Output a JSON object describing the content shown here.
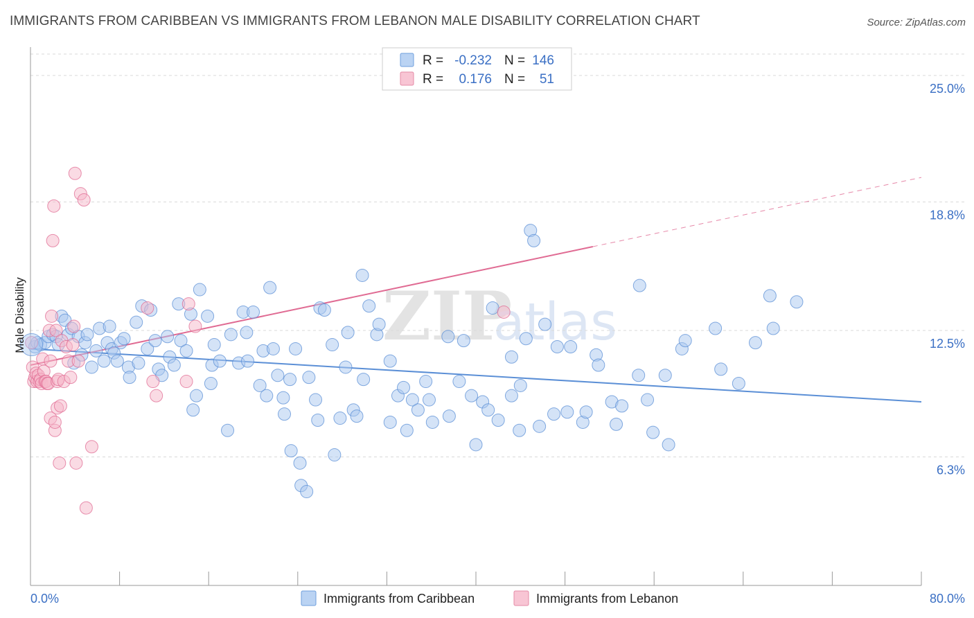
{
  "title": "IMMIGRANTS FROM CARIBBEAN VS IMMIGRANTS FROM LEBANON MALE DISABILITY CORRELATION CHART",
  "source": "Source: ZipAtlas.com",
  "watermark": {
    "zip": "ZIP",
    "atlas": "atlas"
  },
  "legend": {
    "r_label": "R =",
    "n_label": "N =",
    "rows": [
      {
        "name": "Immigrants from Caribbean",
        "r": "-0.232",
        "n": "146",
        "fill": "#a9c8f0",
        "stroke": "#6f9fdc"
      },
      {
        "name": "Immigrants from Lebanon",
        "r": "0.176",
        "n": "51",
        "fill": "#f6b7c9",
        "stroke": "#e58aa6"
      }
    ]
  },
  "chart_data": {
    "type": "scatter",
    "title": "IMMIGRANTS FROM CARIBBEAN VS IMMIGRANTS FROM LEBANON MALE DISABILITY CORRELATION CHART",
    "xlabel": "",
    "ylabel": "Male Disability",
    "xlim": [
      0,
      80
    ],
    "ylim": [
      0,
      27.0
    ],
    "y_ticks": [
      {
        "value": 6.3,
        "label": "6.3%"
      },
      {
        "value": 12.5,
        "label": "12.5%"
      },
      {
        "value": 18.8,
        "label": "18.8%"
      },
      {
        "value": 25.0,
        "label": "25.0%"
      }
    ],
    "x_tick_labels": [
      {
        "value": 0,
        "label": "0.0%"
      },
      {
        "value": 80,
        "label": "80.0%"
      }
    ],
    "x_minor_ticks": [
      0,
      8,
      16,
      24,
      32,
      40,
      48,
      56,
      64,
      72,
      80
    ],
    "grid": true,
    "series": [
      {
        "name": "Immigrants from Caribbean",
        "color": "#5b8fd6",
        "fill": "#a9c8f0",
        "trend": {
          "x0": 0,
          "y0": 11.6,
          "x1": 80,
          "y1": 9.0,
          "dashed_from": null
        },
        "points": [
          [
            0.4,
            11.7
          ],
          [
            0.6,
            11.9
          ],
          [
            0.9,
            11.8
          ],
          [
            1.3,
            11.9
          ],
          [
            1.6,
            12.2
          ],
          [
            2.0,
            12.3
          ],
          [
            2.3,
            12.2
          ],
          [
            2.8,
            13.2
          ],
          [
            2.5,
            11.8
          ],
          [
            3.1,
            13.0
          ],
          [
            3.4,
            12.3
          ],
          [
            3.7,
            12.6
          ],
          [
            3.9,
            10.9
          ],
          [
            4.3,
            12.2
          ],
          [
            4.6,
            11.3
          ],
          [
            4.9,
            11.9
          ],
          [
            5.1,
            12.3
          ],
          [
            5.5,
            10.7
          ],
          [
            5.9,
            11.5
          ],
          [
            6.2,
            12.6
          ],
          [
            6.6,
            11.0
          ],
          [
            6.9,
            11.9
          ],
          [
            7.1,
            12.7
          ],
          [
            7.3,
            11.6
          ],
          [
            7.5,
            11.4
          ],
          [
            7.8,
            11.0
          ],
          [
            8.1,
            11.9
          ],
          [
            8.4,
            12.1
          ],
          [
            8.8,
            10.7
          ],
          [
            8.9,
            10.2
          ],
          [
            9.5,
            12.9
          ],
          [
            9.7,
            10.9
          ],
          [
            10.0,
            13.7
          ],
          [
            10.5,
            11.6
          ],
          [
            10.8,
            13.5
          ],
          [
            11.2,
            12.0
          ],
          [
            11.5,
            10.6
          ],
          [
            11.8,
            10.3
          ],
          [
            12.3,
            12.2
          ],
          [
            12.5,
            11.2
          ],
          [
            12.9,
            10.8
          ],
          [
            13.3,
            13.8
          ],
          [
            13.5,
            12.0
          ],
          [
            14.0,
            11.5
          ],
          [
            14.4,
            13.3
          ],
          [
            14.6,
            8.6
          ],
          [
            14.9,
            9.3
          ],
          [
            15.2,
            14.5
          ],
          [
            15.9,
            13.2
          ],
          [
            16.3,
            10.8
          ],
          [
            16.5,
            11.8
          ],
          [
            16.2,
            9.9
          ],
          [
            17.0,
            11.0
          ],
          [
            17.7,
            7.6
          ],
          [
            18.0,
            12.3
          ],
          [
            18.7,
            10.9
          ],
          [
            19.1,
            13.4
          ],
          [
            19.4,
            12.4
          ],
          [
            19.5,
            11.0
          ],
          [
            20.0,
            13.4
          ],
          [
            20.6,
            9.8
          ],
          [
            20.9,
            11.5
          ],
          [
            21.2,
            9.3
          ],
          [
            21.5,
            14.6
          ],
          [
            21.8,
            11.6
          ],
          [
            22.2,
            10.3
          ],
          [
            22.7,
            9.2
          ],
          [
            22.8,
            8.4
          ],
          [
            23.3,
            10.1
          ],
          [
            23.4,
            6.6
          ],
          [
            23.8,
            11.6
          ],
          [
            24.2,
            6.0
          ],
          [
            24.3,
            4.9
          ],
          [
            24.8,
            4.6
          ],
          [
            25.0,
            10.2
          ],
          [
            25.6,
            9.1
          ],
          [
            25.8,
            8.1
          ],
          [
            26.0,
            13.6
          ],
          [
            26.4,
            13.5
          ],
          [
            27.1,
            11.8
          ],
          [
            27.3,
            6.4
          ],
          [
            27.8,
            8.2
          ],
          [
            28.3,
            10.7
          ],
          [
            28.5,
            12.4
          ],
          [
            29.0,
            8.6
          ],
          [
            29.3,
            8.3
          ],
          [
            29.8,
            15.2
          ],
          [
            29.9,
            10.1
          ],
          [
            30.4,
            13.7
          ],
          [
            31.1,
            12.3
          ],
          [
            31.3,
            12.8
          ],
          [
            32.3,
            8.0
          ],
          [
            32.3,
            11.0
          ],
          [
            33.0,
            9.3
          ],
          [
            33.5,
            9.7
          ],
          [
            33.8,
            7.6
          ],
          [
            34.3,
            9.1
          ],
          [
            34.8,
            8.6
          ],
          [
            35.5,
            10.0
          ],
          [
            35.8,
            9.1
          ],
          [
            36.1,
            8.0
          ],
          [
            37.5,
            12.2
          ],
          [
            37.6,
            8.3
          ],
          [
            38.5,
            10.0
          ],
          [
            38.9,
            12.0
          ],
          [
            39.6,
            9.3
          ],
          [
            40.0,
            6.9
          ],
          [
            40.6,
            9.0
          ],
          [
            41.1,
            8.6
          ],
          [
            41.5,
            13.6
          ],
          [
            42.0,
            8.1
          ],
          [
            43.2,
            9.3
          ],
          [
            43.2,
            11.2
          ],
          [
            43.9,
            7.6
          ],
          [
            44.0,
            9.8
          ],
          [
            44.5,
            12.1
          ],
          [
            44.9,
            17.4
          ],
          [
            45.2,
            16.9
          ],
          [
            45.7,
            7.8
          ],
          [
            46.2,
            12.8
          ],
          [
            47.0,
            8.4
          ],
          [
            47.3,
            11.7
          ],
          [
            48.2,
            8.5
          ],
          [
            48.5,
            11.7
          ],
          [
            49.6,
            8.0
          ],
          [
            49.9,
            8.5
          ],
          [
            50.8,
            11.3
          ],
          [
            51.0,
            10.8
          ],
          [
            52.2,
            9.0
          ],
          [
            52.6,
            7.9
          ],
          [
            53.1,
            8.8
          ],
          [
            54.7,
            14.7
          ],
          [
            54.6,
            10.3
          ],
          [
            55.4,
            9.1
          ],
          [
            55.9,
            7.5
          ],
          [
            57.0,
            10.3
          ],
          [
            57.3,
            6.9
          ],
          [
            58.5,
            11.6
          ],
          [
            58.8,
            12.0
          ],
          [
            61.5,
            12.6
          ],
          [
            62.0,
            10.6
          ],
          [
            63.6,
            9.9
          ],
          [
            65.1,
            11.9
          ],
          [
            66.4,
            14.2
          ],
          [
            66.7,
            12.6
          ],
          [
            68.8,
            13.9
          ]
        ]
      },
      {
        "name": "Immigrants from Lebanon",
        "color": "#e06b93",
        "fill": "#f6b7c9",
        "trend": {
          "x0": 0,
          "y0": 10.8,
          "x1": 80,
          "y1": 20.0,
          "dashed_from": 50.5
        },
        "points": [
          [
            0.1,
            11.9
          ],
          [
            0.2,
            10.7
          ],
          [
            0.3,
            10.0
          ],
          [
            0.4,
            10.2
          ],
          [
            0.5,
            10.4
          ],
          [
            0.6,
            10.0
          ],
          [
            0.7,
            10.3
          ],
          [
            0.8,
            10.0
          ],
          [
            0.9,
            10.1
          ],
          [
            1.0,
            9.9
          ],
          [
            1.1,
            11.1
          ],
          [
            1.2,
            10.5
          ],
          [
            1.3,
            10.0
          ],
          [
            1.4,
            10.0
          ],
          [
            1.5,
            9.9
          ],
          [
            1.6,
            9.9
          ],
          [
            1.7,
            12.5
          ],
          [
            1.8,
            11.0
          ],
          [
            1.8,
            8.2
          ],
          [
            1.9,
            13.2
          ],
          [
            2.0,
            16.9
          ],
          [
            2.1,
            18.6
          ],
          [
            2.2,
            7.6
          ],
          [
            2.2,
            8.0
          ],
          [
            2.3,
            12.5
          ],
          [
            2.4,
            10.0
          ],
          [
            2.4,
            8.7
          ],
          [
            2.5,
            10.1
          ],
          [
            2.6,
            6.0
          ],
          [
            2.7,
            8.8
          ],
          [
            2.8,
            12.0
          ],
          [
            3.0,
            10.0
          ],
          [
            3.2,
            11.7
          ],
          [
            3.4,
            11.0
          ],
          [
            3.6,
            10.2
          ],
          [
            3.8,
            11.8
          ],
          [
            3.9,
            12.7
          ],
          [
            4.0,
            20.2
          ],
          [
            4.1,
            6.0
          ],
          [
            4.3,
            11.0
          ],
          [
            4.5,
            19.2
          ],
          [
            4.8,
            18.9
          ],
          [
            5.0,
            3.8
          ],
          [
            5.5,
            6.8
          ],
          [
            10.5,
            13.6
          ],
          [
            11.0,
            10.0
          ],
          [
            11.3,
            9.3
          ],
          [
            14.2,
            13.8
          ],
          [
            14.8,
            12.7
          ],
          [
            14.0,
            10.0
          ],
          [
            42.5,
            13.4
          ]
        ]
      }
    ]
  }
}
